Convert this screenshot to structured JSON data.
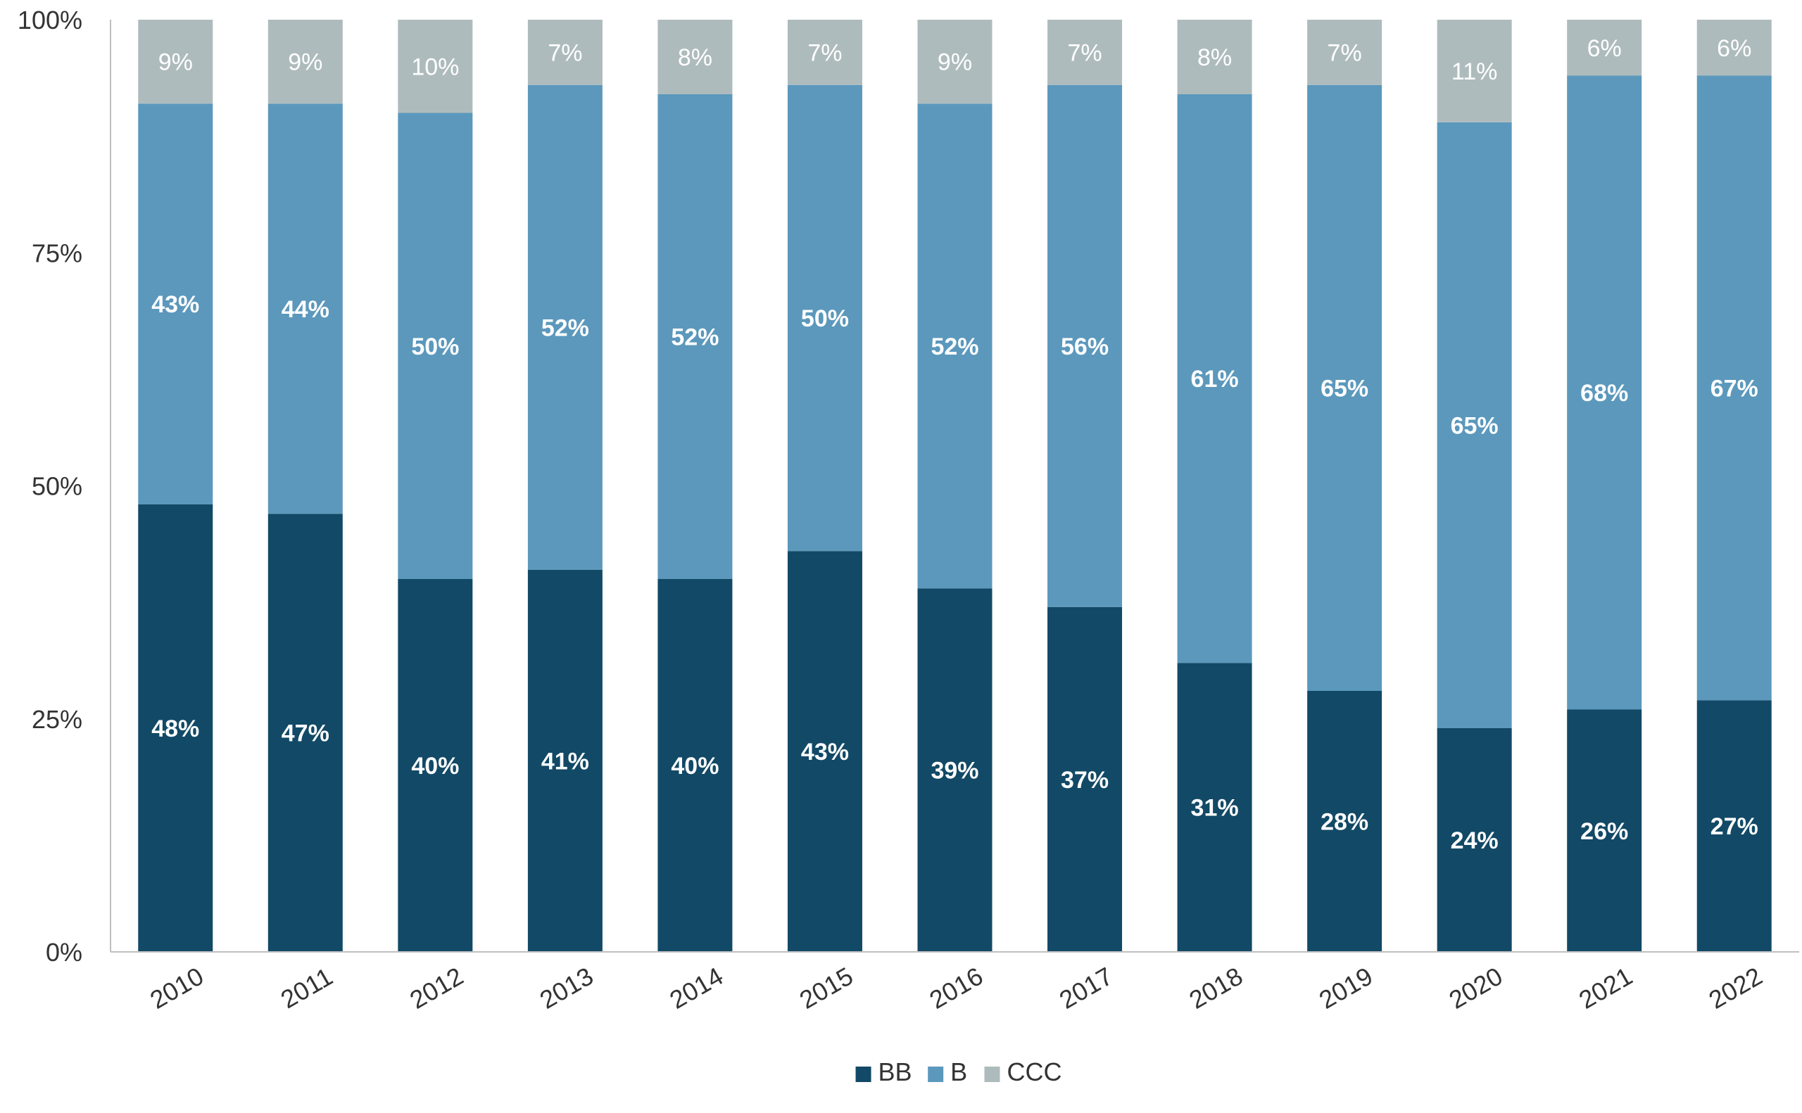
{
  "chart_data": {
    "type": "bar",
    "stacked": true,
    "categories": [
      "2010",
      "2011",
      "2012",
      "2013",
      "2014",
      "2015",
      "2016",
      "2017",
      "2018",
      "2019",
      "2020",
      "2021",
      "2022"
    ],
    "series": [
      {
        "name": "BB",
        "color": "#124966",
        "values": [
          48,
          47,
          40,
          41,
          40,
          43,
          39,
          37,
          31,
          28,
          24,
          26,
          27
        ],
        "labels": [
          "48%",
          "47%",
          "40%",
          "41%",
          "40%",
          "43%",
          "39%",
          "37%",
          "31%",
          "28%",
          "24%",
          "26%",
          "27%"
        ]
      },
      {
        "name": "B",
        "color": "#5b98bc",
        "values": [
          43,
          44,
          50,
          52,
          52,
          50,
          52,
          56,
          61,
          65,
          65,
          68,
          67
        ],
        "labels": [
          "43%",
          "44%",
          "50%",
          "52%",
          "52%",
          "50%",
          "52%",
          "56%",
          "61%",
          "65%",
          "65%",
          "68%",
          "67%"
        ]
      },
      {
        "name": "CCC",
        "color": "#aebbbd",
        "values": [
          9,
          9,
          10,
          7,
          8,
          7,
          9,
          7,
          8,
          7,
          11,
          6,
          6
        ],
        "labels": [
          "9%",
          "9%",
          "10%",
          "7%",
          "8%",
          "7%",
          "9%",
          "7%",
          "8%",
          "7%",
          "11%",
          "6%",
          "6%"
        ]
      }
    ],
    "title": "",
    "xlabel": "",
    "ylabel": "",
    "ylim": [
      0,
      100
    ],
    "yticks": [
      0,
      25,
      50,
      75,
      100
    ],
    "ytick_labels": [
      "0%",
      "25%",
      "50%",
      "75%",
      "100%"
    ],
    "grid": false,
    "legend": {
      "position": "bottom-center",
      "entries": [
        "BB",
        "B",
        "CCC"
      ]
    },
    "x_tick_rotation": "angled",
    "colors": {
      "label_text": "#ffffff",
      "axis_text": "#333333",
      "axis_line": "#bfbfbf"
    }
  }
}
